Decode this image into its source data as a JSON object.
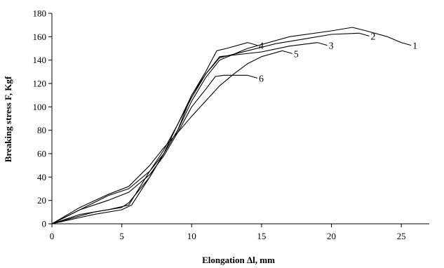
{
  "chart_data": {
    "type": "line",
    "title": "",
    "xlabel": "Elongation Δl, mm",
    "ylabel": "Breaking stress F, Kgf",
    "xlim": [
      0,
      27
    ],
    "ylim": [
      0,
      180
    ],
    "xticks": [
      0,
      5,
      10,
      15,
      20,
      25
    ],
    "yticks": [
      0,
      20,
      40,
      60,
      80,
      100,
      120,
      140,
      160,
      180
    ],
    "grid": false,
    "legend": "none",
    "series": [
      {
        "name": "1",
        "points": [
          [
            0,
            0
          ],
          [
            3,
            8
          ],
          [
            5,
            12
          ],
          [
            5.7,
            16
          ],
          [
            7,
            40
          ],
          [
            8,
            60
          ],
          [
            9,
            80
          ],
          [
            10,
            105
          ],
          [
            11,
            125
          ],
          [
            12,
            140
          ],
          [
            14,
            150
          ],
          [
            17,
            160
          ],
          [
            20,
            165
          ],
          [
            21.5,
            168
          ],
          [
            22.5,
            165
          ],
          [
            24,
            160
          ],
          [
            25,
            155
          ]
        ]
      },
      {
        "name": "2",
        "points": [
          [
            0,
            0
          ],
          [
            2,
            8
          ],
          [
            4,
            12
          ],
          [
            5.5,
            16
          ],
          [
            7,
            45
          ],
          [
            8,
            63
          ],
          [
            9,
            85
          ],
          [
            10,
            108
          ],
          [
            11,
            128
          ],
          [
            12,
            142
          ],
          [
            14,
            148
          ],
          [
            16,
            154
          ],
          [
            18,
            158
          ],
          [
            20,
            162
          ],
          [
            22,
            163
          ]
        ]
      },
      {
        "name": "3",
        "points": [
          [
            0,
            0
          ],
          [
            2,
            12
          ],
          [
            4,
            24
          ],
          [
            5.5,
            30
          ],
          [
            7,
            45
          ],
          [
            8,
            60
          ],
          [
            9,
            80
          ],
          [
            10,
            110
          ],
          [
            11,
            128
          ],
          [
            12,
            143
          ],
          [
            15,
            147
          ],
          [
            17,
            152
          ],
          [
            19,
            155
          ]
        ]
      },
      {
        "name": "4",
        "points": [
          [
            0,
            0
          ],
          [
            3,
            10
          ],
          [
            5,
            14
          ],
          [
            5.5,
            18
          ],
          [
            7,
            40
          ],
          [
            8,
            60
          ],
          [
            9,
            85
          ],
          [
            10,
            110
          ],
          [
            11,
            130
          ],
          [
            11.8,
            148
          ],
          [
            12.5,
            150
          ],
          [
            14,
            155
          ]
        ]
      },
      {
        "name": "5",
        "points": [
          [
            0,
            0
          ],
          [
            2,
            14
          ],
          [
            4,
            25
          ],
          [
            5.5,
            32
          ],
          [
            7,
            50
          ],
          [
            8,
            65
          ],
          [
            9,
            78
          ],
          [
            10,
            92
          ],
          [
            11,
            105
          ],
          [
            12,
            118
          ],
          [
            13,
            128
          ],
          [
            14,
            137
          ],
          [
            15,
            143
          ],
          [
            16.5,
            148
          ]
        ]
      },
      {
        "name": "6",
        "points": [
          [
            0,
            0
          ],
          [
            2,
            12
          ],
          [
            4,
            20
          ],
          [
            5.5,
            27
          ],
          [
            7,
            42
          ],
          [
            8,
            58
          ],
          [
            9,
            78
          ],
          [
            10,
            100
          ],
          [
            11,
            115
          ],
          [
            11.7,
            126
          ],
          [
            12.3,
            127
          ],
          [
            14,
            127
          ]
        ]
      }
    ]
  }
}
